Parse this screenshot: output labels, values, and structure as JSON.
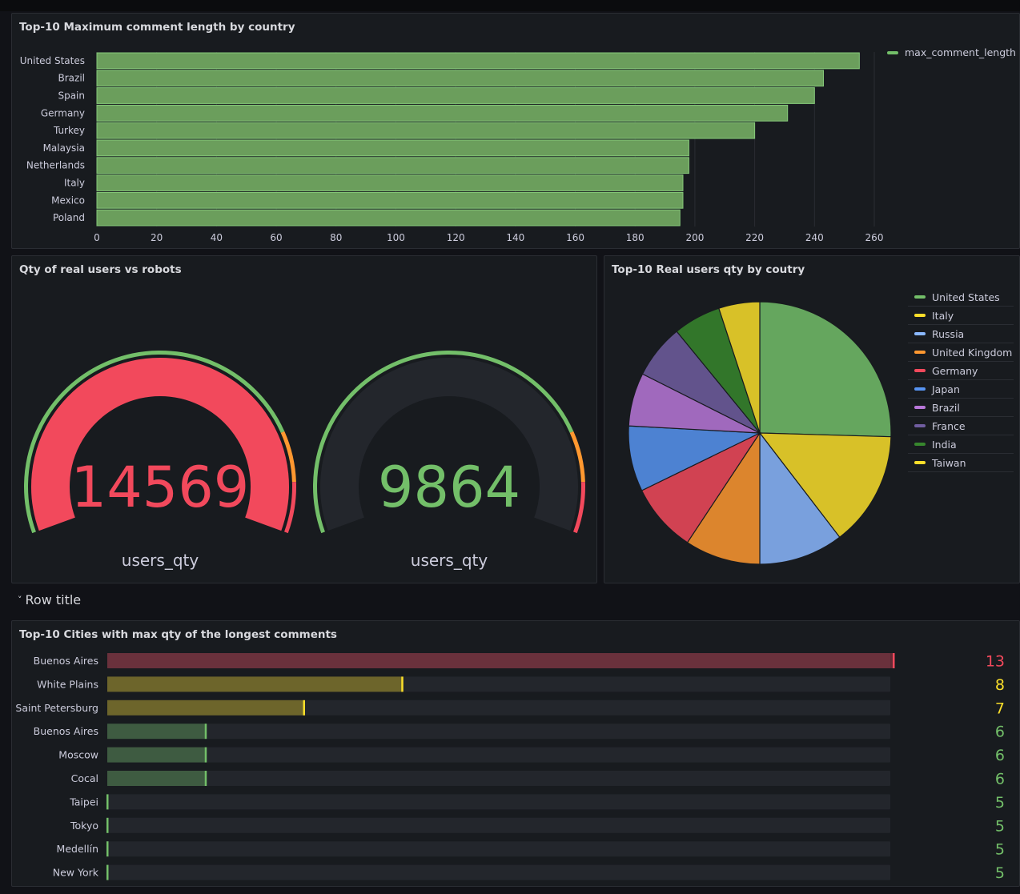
{
  "row": {
    "title": "Row title"
  },
  "panels": {
    "bar": {
      "title": "Top-10 Maximum comment length by country",
      "legend": "max_comment_length",
      "color": "#73bf69"
    },
    "gauges": {
      "title": "Qty of real users vs robots",
      "items": [
        {
          "value": "14569",
          "label": "users_qty",
          "color": "#f2495c",
          "fraction": 1.0
        },
        {
          "value": "9864",
          "label": "users_qty",
          "color": "#73bf69",
          "fraction": 0.0
        }
      ]
    },
    "pie": {
      "title": "Top-10 Real users qty by coutry"
    },
    "bargauge": {
      "title": "Top-10 Cities with max qty of the longest comments"
    }
  },
  "chart_data": [
    {
      "type": "bar",
      "orientation": "horizontal",
      "title": "Top-10 Maximum comment length by country",
      "categories": [
        "United States",
        "Brazil",
        "Spain",
        "Germany",
        "Turkey",
        "Malaysia",
        "Netherlands",
        "Italy",
        "Mexico",
        "Poland"
      ],
      "series": [
        {
          "name": "max_comment_length",
          "values": [
            255,
            243,
            240,
            231,
            220,
            198,
            198,
            196,
            196,
            195
          ]
        }
      ],
      "xticks": [
        0,
        20,
        40,
        60,
        80,
        100,
        120,
        140,
        160,
        180,
        200,
        220,
        240,
        260
      ],
      "xlim": [
        0,
        260
      ],
      "legend": "top-right",
      "grid": true
    },
    {
      "type": "pie",
      "title": "Top-10 Real users qty by coutry",
      "labels": [
        "United States",
        "Italy",
        "Russia",
        "United Kingdom",
        "Germany",
        "Japan",
        "Brazil",
        "France",
        "India",
        "Taiwan"
      ],
      "values": [
        25.2,
        14.0,
        10.3,
        9.2,
        8.4,
        8.0,
        6.5,
        6.6,
        5.8,
        5.0
      ],
      "colors": [
        "#73bf69",
        "#fade2a",
        "#8ab8ff",
        "#ff9830",
        "#f2495c",
        "#5794f2",
        "#b877d9",
        "#705da0",
        "#37872d",
        "#fade2a"
      ],
      "legend": "right"
    },
    {
      "type": "bar",
      "orientation": "horizontal",
      "title": "Top-10 Cities with max qty of the longest comments",
      "categories": [
        "Buenos Aires",
        "White Plains",
        "Saint Petersburg",
        "Buenos Aires",
        "Moscow",
        "Cocal",
        "Taipei",
        "Tokyo",
        "Medellín",
        "New York"
      ],
      "values": [
        13,
        8,
        7,
        6,
        6,
        6,
        5,
        5,
        5,
        5
      ],
      "value_labels": [
        "13",
        "8",
        "7",
        "6",
        "6",
        "6",
        "5",
        "5",
        "5",
        "5"
      ],
      "colors": [
        "#f2495c",
        "#fade2a",
        "#fade2a",
        "#73bf69",
        "#73bf69",
        "#73bf69",
        "#73bf69",
        "#73bf69",
        "#73bf69",
        "#73bf69"
      ],
      "xlim": [
        5,
        13
      ]
    }
  ]
}
